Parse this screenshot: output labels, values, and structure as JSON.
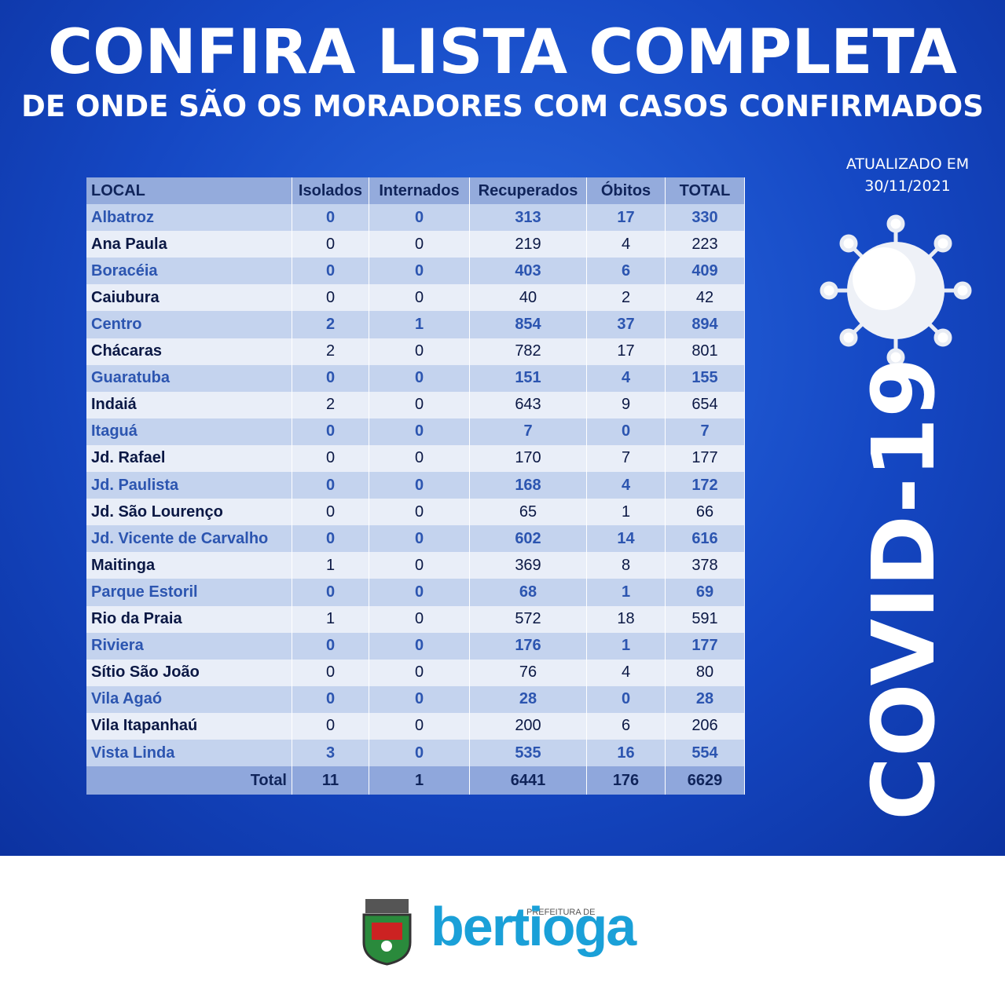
{
  "header": {
    "title": "CONFIRA LISTA COMPLETA",
    "subtitle": "DE ONDE SÃO OS MORADORES COM CASOS CONFIRMADOS"
  },
  "updated": [
    "ATUALIZADO EM",
    "30/11/2021"
  ],
  "side_label": "COVID-19",
  "table": {
    "columns": [
      "LOCAL",
      "Isolados",
      "Internados",
      "Recuperados",
      "Óbitos",
      "TOTAL"
    ],
    "rows": [
      [
        "Albatroz",
        0,
        0,
        313,
        17,
        330
      ],
      [
        "Ana Paula",
        0,
        0,
        219,
        4,
        223
      ],
      [
        "Boracéia",
        0,
        0,
        403,
        6,
        409
      ],
      [
        "Caiubura",
        0,
        0,
        40,
        2,
        42
      ],
      [
        "Centro",
        2,
        1,
        854,
        37,
        894
      ],
      [
        "Chácaras",
        2,
        0,
        782,
        17,
        801
      ],
      [
        "Guaratuba",
        0,
        0,
        151,
        4,
        155
      ],
      [
        "Indaiá",
        2,
        0,
        643,
        9,
        654
      ],
      [
        "Itaguá",
        0,
        0,
        7,
        0,
        7
      ],
      [
        "Jd. Rafael",
        0,
        0,
        170,
        7,
        177
      ],
      [
        "Jd. Paulista",
        0,
        0,
        168,
        4,
        172
      ],
      [
        "Jd. São Lourenço",
        0,
        0,
        65,
        1,
        66
      ],
      [
        "Jd. Vicente de Carvalho",
        0,
        0,
        602,
        14,
        616
      ],
      [
        "Maitinga",
        1,
        0,
        369,
        8,
        378
      ],
      [
        "Parque Estoril",
        0,
        0,
        68,
        1,
        69
      ],
      [
        "Rio da Praia",
        1,
        0,
        572,
        18,
        591
      ],
      [
        "Riviera",
        0,
        0,
        176,
        1,
        177
      ],
      [
        "Sítio São João",
        0,
        0,
        76,
        4,
        80
      ],
      [
        "Vila Agaó",
        0,
        0,
        28,
        0,
        28
      ],
      [
        "Vila Itapanhaú",
        0,
        0,
        200,
        6,
        206
      ],
      [
        "Vista Linda",
        3,
        0,
        535,
        16,
        554
      ]
    ],
    "total": [
      "Total",
      11,
      1,
      6441,
      176,
      6629
    ]
  },
  "footer": {
    "prefix": "PREFEITURA DE",
    "brand": "bertioga"
  }
}
